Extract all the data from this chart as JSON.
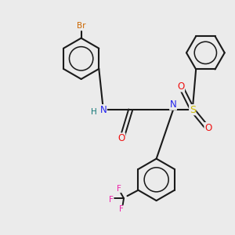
{
  "bg_color": "#ebebeb",
  "bond_color": "#1a1a1a",
  "colors": {
    "N": "#2222ee",
    "O": "#ee1111",
    "S": "#ccbb00",
    "Br": "#cc6600",
    "F": "#ee22aa",
    "H": "#117777",
    "C": "#1a1a1a"
  }
}
